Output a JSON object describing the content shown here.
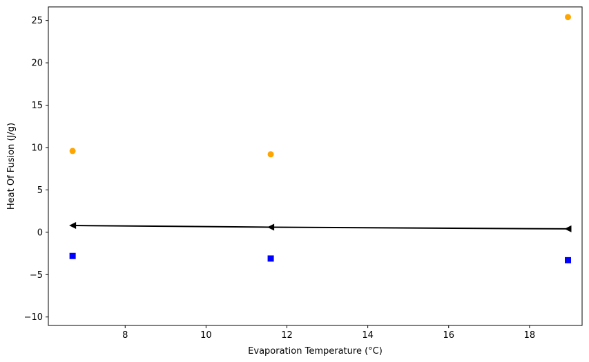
{
  "chart_data": {
    "type": "scatter",
    "xlabel": "Evaporation Temperature (°C)",
    "ylabel": "Heat Of Fusion (J/g)",
    "xlim": [
      6.1,
      19.3
    ],
    "ylim": [
      -11,
      26.6
    ],
    "xticks": [
      8,
      10,
      12,
      14,
      16,
      18
    ],
    "yticks": [
      -10,
      -5,
      0,
      5,
      10,
      15,
      20,
      25
    ],
    "grid": false,
    "series": [
      {
        "marker": "circle",
        "color": "#FFA500",
        "x": [
          6.7,
          11.6,
          18.95
        ],
        "y": [
          9.6,
          9.2,
          25.4
        ]
      },
      {
        "marker": "square",
        "color": "#0000FF",
        "x": [
          6.7,
          11.6,
          18.95
        ],
        "y": [
          -2.8,
          -3.1,
          -3.3
        ]
      },
      {
        "marker": "left-triangle",
        "color": "#000000",
        "line": true,
        "x": [
          6.7,
          11.6,
          18.95
        ],
        "y": [
          0.8,
          0.6,
          0.4
        ]
      }
    ]
  }
}
